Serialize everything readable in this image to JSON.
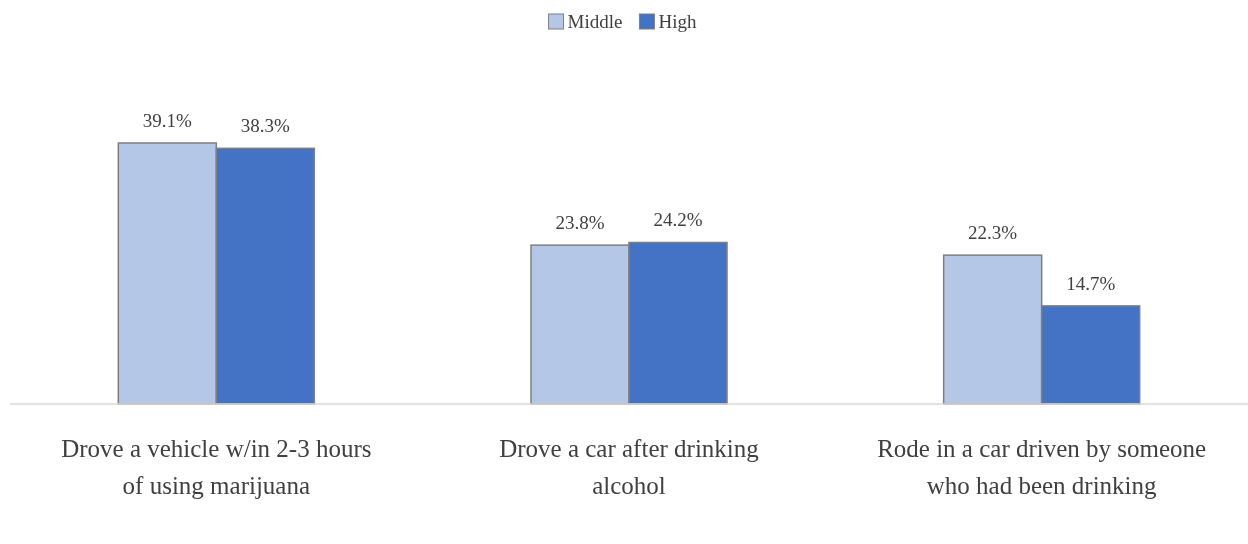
{
  "chart_data": {
    "type": "bar",
    "categories": [
      "Drove a vehicle w/in 2-3 hours of using marijuana",
      "Drove a car after drinking alcohol",
      "Rode in a car driven by someone who had been drinking"
    ],
    "series": [
      {
        "name": "Middle",
        "color": "#b4c7e7",
        "values": [
          39.1,
          23.8,
          22.3
        ],
        "value_labels": [
          "39.1%",
          "23.8%",
          "22.3%"
        ]
      },
      {
        "name": "High",
        "color": "#4472c4",
        "values": [
          38.3,
          24.2,
          14.7
        ],
        "value_labels": [
          "38.3%",
          "24.2%",
          "14.7%"
        ]
      }
    ],
    "legend": "top"
  }
}
